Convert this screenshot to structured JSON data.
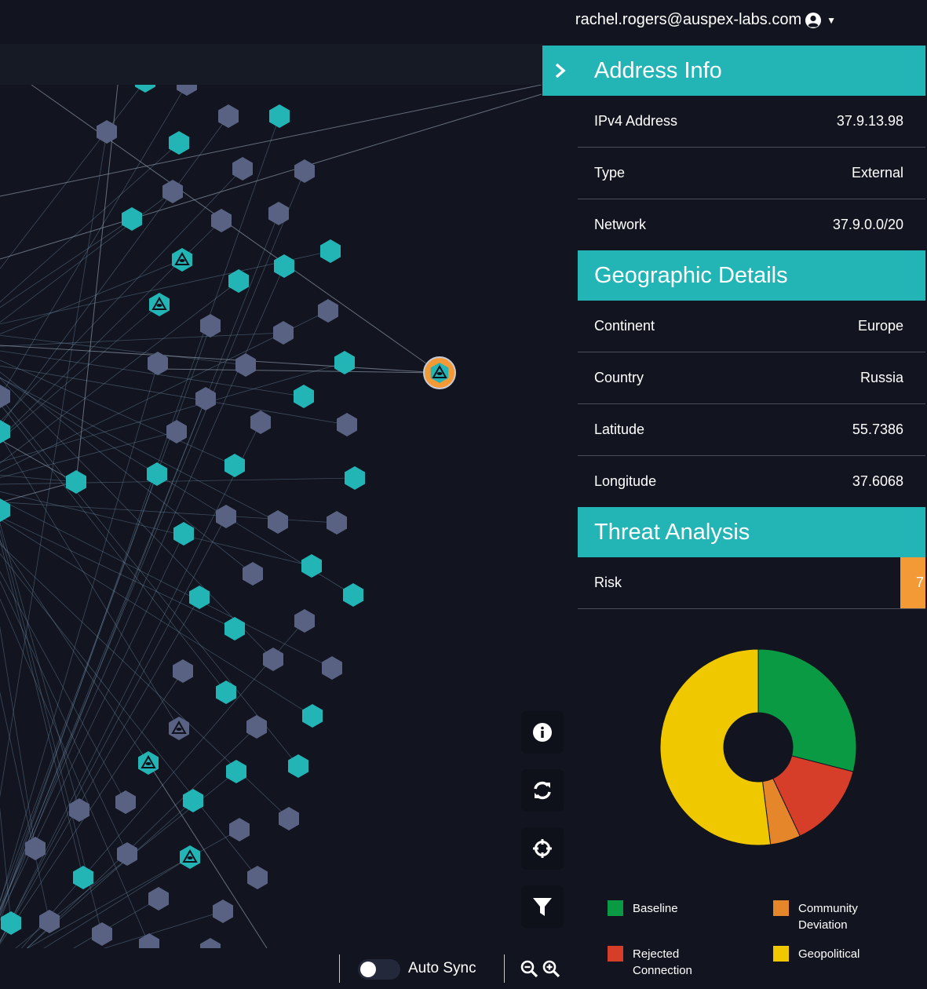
{
  "header": {
    "user_email": "rachel.rogers@auspex-labs.com",
    "user_icon": "user-circle-icon",
    "dropdown_icon": "caret-down-icon"
  },
  "panel": {
    "collapse_icon": "chevron-right-icon",
    "address_info": {
      "title": "Address Info",
      "rows": [
        {
          "label": "IPv4 Address",
          "value": "37.9.13.98"
        },
        {
          "label": "Type",
          "value": "External"
        },
        {
          "label": "Network",
          "value": "37.9.0.0/20"
        }
      ]
    },
    "geographic": {
      "title": "Geographic Details",
      "rows": [
        {
          "label": "Continent",
          "value": "Europe"
        },
        {
          "label": "Country",
          "value": "Russia"
        },
        {
          "label": "Latitude",
          "value": "55.7386"
        },
        {
          "label": "Longitude",
          "value": "37.6068"
        }
      ]
    },
    "threat": {
      "title": "Threat Analysis",
      "risk_label": "Risk",
      "risk_value": "7"
    }
  },
  "chart_data": {
    "type": "pie",
    "donut": true,
    "title": "",
    "categories": [
      "Baseline",
      "Rejected Connection",
      "Community Deviation",
      "Geopolitical"
    ],
    "values": [
      29,
      14,
      5,
      52
    ],
    "colors": [
      "#0a9a43",
      "#d63e2a",
      "#e6862a",
      "#f0c800"
    ],
    "legend": [
      {
        "lines": [
          "Baseline"
        ],
        "color": "#0a9a43"
      },
      {
        "lines": [
          "Community",
          "Deviation"
        ],
        "color": "#e6862a"
      },
      {
        "lines": [
          "Rejected",
          "Connection"
        ],
        "color": "#d63e2a"
      },
      {
        "lines": [
          "Geopolitical"
        ],
        "color": "#f0c800"
      }
    ]
  },
  "tools": [
    {
      "name": "info-icon"
    },
    {
      "name": "refresh-icon"
    },
    {
      "name": "crosshair-icon"
    },
    {
      "name": "filter-icon"
    }
  ],
  "bottom_bar": {
    "auto_sync_label": "Auto Sync",
    "auto_sync_on": false,
    "zoom_out_icon": "zoom-out-icon",
    "zoom_in_icon": "zoom-in-icon"
  },
  "graph": {
    "colors": {
      "teal": "#23b5b6",
      "gray": "#5a6284",
      "selected": "#f39a36",
      "edge": "#6f8ba8"
    },
    "node_types": [
      "teal",
      "gray",
      "threat",
      "selected"
    ]
  }
}
